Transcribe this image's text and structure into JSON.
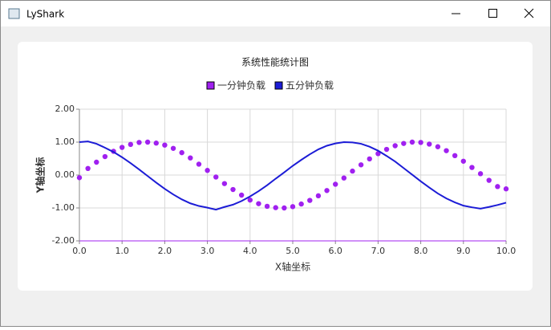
{
  "window_title": "LyShark",
  "chart_data": {
    "type": "scatter-line",
    "title": "系统性能统计图",
    "x_label": "X轴坐标",
    "y_label": "Y轴坐标",
    "xlim": [
      0,
      10
    ],
    "ylim": [
      -2,
      2
    ],
    "xticks": [
      {
        "value": 0,
        "label": "0.0"
      },
      {
        "value": 1,
        "label": "1.0"
      },
      {
        "value": 2,
        "label": "2.0"
      },
      {
        "value": 3,
        "label": "3.0"
      },
      {
        "value": 4,
        "label": "4.0"
      },
      {
        "value": 5,
        "label": "5.0"
      },
      {
        "value": 6,
        "label": "6.0"
      },
      {
        "value": 7,
        "label": "7.0"
      },
      {
        "value": 8,
        "label": "8.0"
      },
      {
        "value": 9,
        "label": "9.0"
      },
      {
        "value": 10,
        "label": "10.0"
      }
    ],
    "yticks": [
      {
        "value": -2,
        "label": "-2.00"
      },
      {
        "value": -1,
        "label": "-1.00"
      },
      {
        "value": 0,
        "label": "0.00"
      },
      {
        "value": 1,
        "label": "1.00"
      },
      {
        "value": 2,
        "label": "2.00"
      }
    ],
    "grid": true,
    "x": [
      0,
      0.2,
      0.4,
      0.6,
      0.8,
      1,
      1.2,
      1.4,
      1.6,
      1.8,
      2,
      2.2,
      2.4,
      2.6,
      2.8,
      3,
      3.2,
      3.4,
      3.6,
      3.8,
      4,
      4.2,
      4.4,
      4.6,
      4.8,
      5,
      5.2,
      5.4,
      5.6,
      5.8,
      6,
      6.2,
      6.4,
      6.6,
      6.8,
      7,
      7.2,
      7.4,
      7.6,
      7.8,
      8,
      8.2,
      8.4,
      8.6,
      8.8,
      9,
      9.2,
      9.4,
      9.6,
      9.8,
      10
    ],
    "series": [
      {
        "name": "一分钟负载",
        "color": "#a020f0",
        "style": "points",
        "values": [
          -0.08,
          0.2,
          0.39,
          0.56,
          0.72,
          0.84,
          0.93,
          0.99,
          1.0,
          0.97,
          0.91,
          0.81,
          0.68,
          0.52,
          0.33,
          0.14,
          -0.06,
          -0.26,
          -0.44,
          -0.61,
          -0.76,
          -0.87,
          -0.95,
          -0.99,
          -1.0,
          -0.96,
          -0.88,
          -0.77,
          -0.63,
          -0.47,
          -0.28,
          -0.09,
          0.12,
          0.31,
          0.49,
          0.65,
          0.78,
          0.89,
          0.96,
          1.0,
          0.99,
          0.94,
          0.86,
          0.74,
          0.59,
          0.42,
          0.23,
          0.04,
          -0.16,
          -0.35,
          -0.42
        ]
      },
      {
        "name": "五分钟负载",
        "color": "#1c1cd6",
        "style": "line",
        "values": [
          1.0,
          1.02,
          0.95,
          0.83,
          0.7,
          0.54,
          0.36,
          0.17,
          -0.03,
          -0.23,
          -0.42,
          -0.59,
          -0.74,
          -0.86,
          -0.94,
          -0.99,
          -1.05,
          -0.97,
          -0.9,
          -0.79,
          -0.65,
          -0.49,
          -0.31,
          -0.11,
          0.08,
          0.28,
          0.46,
          0.63,
          0.78,
          0.89,
          0.96,
          1.0,
          0.99,
          0.95,
          0.86,
          0.74,
          0.58,
          0.41,
          0.21,
          0.01,
          -0.19,
          -0.38,
          -0.56,
          -0.71,
          -0.83,
          -0.93,
          -0.98,
          -1.02,
          -0.97,
          -0.91,
          -0.84
        ]
      }
    ]
  }
}
